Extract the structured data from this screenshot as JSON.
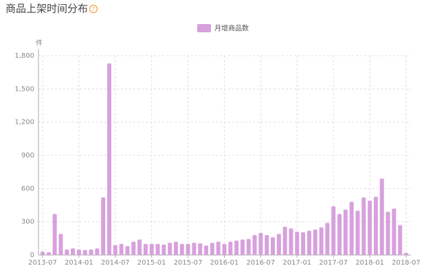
{
  "chart_data": {
    "type": "bar",
    "title": "商品上架时间分布",
    "title_icon": "?",
    "y_unit": "件",
    "categories": [
      "2013-07",
      null,
      null,
      null,
      null,
      null,
      "2014-01",
      null,
      null,
      null,
      null,
      null,
      "2014-07",
      null,
      null,
      null,
      null,
      null,
      "2015-01",
      null,
      null,
      null,
      null,
      null,
      "2015-07",
      null,
      null,
      null,
      null,
      null,
      "2016-01",
      null,
      null,
      null,
      null,
      null,
      "2016-07",
      null,
      null,
      null,
      null,
      null,
      "2017-01",
      null,
      null,
      null,
      null,
      null,
      "2017-07",
      null,
      null,
      null,
      null,
      null,
      "2018-01",
      null,
      null,
      null,
      null,
      null,
      "2018-07"
    ],
    "series": [
      {
        "name": "月增商品数",
        "color": "#d7a1dd",
        "values": [
          30,
          25,
          370,
          190,
          50,
          60,
          50,
          45,
          50,
          60,
          520,
          1730,
          90,
          100,
          80,
          120,
          140,
          100,
          100,
          100,
          95,
          110,
          120,
          100,
          100,
          110,
          105,
          85,
          110,
          120,
          100,
          120,
          130,
          140,
          145,
          180,
          200,
          180,
          160,
          190,
          255,
          240,
          210,
          205,
          220,
          230,
          250,
          290,
          440,
          370,
          410,
          480,
          400,
          520,
          490,
          525,
          690,
          390,
          420,
          270,
          20
        ]
      }
    ],
    "ylim": [
      0,
      1800
    ],
    "yticks": [
      0,
      300,
      600,
      900,
      {
        "value": 1200,
        "label": "1,200"
      },
      {
        "value": 1500,
        "label": "1,500"
      },
      {
        "value": 1800,
        "label": "1,800"
      }
    ],
    "grid": true,
    "legend": "top"
  }
}
